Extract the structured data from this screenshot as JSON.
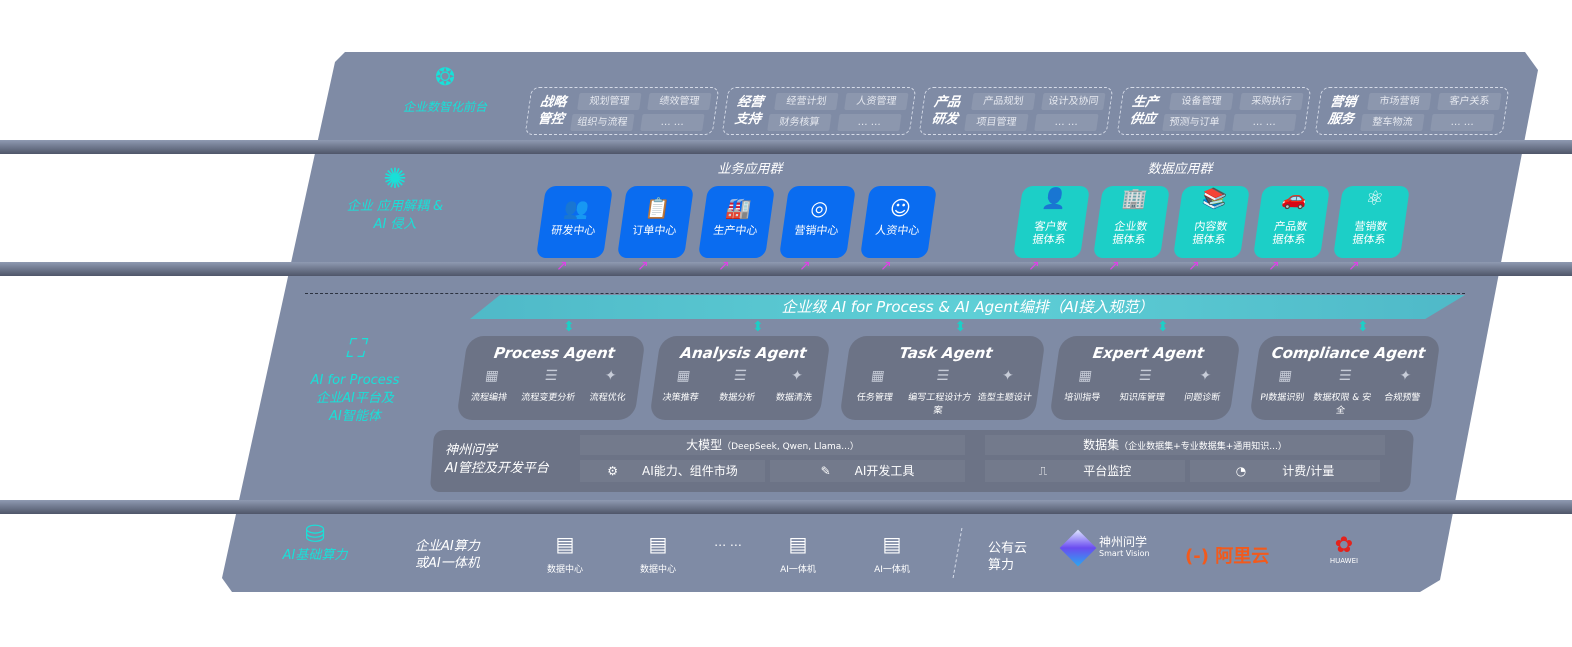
{
  "layers": {
    "frontend": {
      "label": "企业数智化前台",
      "icon": "brain-icon",
      "groups": [
        {
          "title": "战略管控",
          "items": [
            "规划管理",
            "绩效管理",
            "组织与流程",
            "… …"
          ]
        },
        {
          "title": "经营支持",
          "items": [
            "经营计划",
            "人资管理",
            "财务核算",
            "… …"
          ]
        },
        {
          "title": "产品研发",
          "items": [
            "产品规划",
            "设计及协同",
            "项目管理",
            "… …"
          ]
        },
        {
          "title": "生产供应",
          "items": [
            "设备管理",
            "采购执行",
            "预测与订单",
            "… …"
          ]
        },
        {
          "title": "营销服务",
          "items": [
            "市场营销",
            "客户关系",
            "整车物流",
            "… …"
          ]
        }
      ]
    },
    "apps": {
      "label": "企业 应用解耦 & AI 侵入",
      "icon": "molecule-icon",
      "business_title": "业务应用群",
      "data_title": "数据应用群",
      "business": [
        {
          "label": "研发中心",
          "icon": "team-icon"
        },
        {
          "label": "订单中心",
          "icon": "clipboard-icon"
        },
        {
          "label": "生产中心",
          "icon": "factory-icon"
        },
        {
          "label": "营销中心",
          "icon": "target-icon"
        },
        {
          "label": "人资中心",
          "icon": "person-icon"
        }
      ],
      "data": [
        {
          "label": "客户数据体系",
          "icon": "user-icon"
        },
        {
          "label": "企业数据体系",
          "icon": "building-icon"
        },
        {
          "label": "内容数据体系",
          "icon": "books-icon"
        },
        {
          "label": "产品数据体系",
          "icon": "car-icon"
        },
        {
          "label": "营销数据体系",
          "icon": "atom-icon"
        }
      ]
    },
    "ai": {
      "label1": "AI for Process",
      "label2": "企业AI平台及",
      "label3": "AI智能体",
      "icon": "face-scan-icon",
      "banner": "企业级 AI for Process & AI Agent编排（AI接入规范）",
      "agents": [
        {
          "title": "Process Agent",
          "items": [
            "流程编排",
            "流程变更分析",
            "流程优化"
          ]
        },
        {
          "title": "Analysis Agent",
          "items": [
            "决策推荐",
            "数据分析",
            "数据清洗"
          ]
        },
        {
          "title": "Task Agent",
          "items": [
            "任务管理",
            "编写工程设计方案",
            "造型主题设计"
          ]
        },
        {
          "title": "Expert Agent",
          "items": [
            "培训指导",
            "知识库管理",
            "问题诊断"
          ]
        },
        {
          "title": "Compliance Agent",
          "items": [
            "PI数据识别",
            "数据权限 & 安全",
            "合规预警"
          ]
        }
      ],
      "platform": {
        "name1": "神州问学",
        "name2": "AI管控及开发平台",
        "model_title": "大模型",
        "model_note": "（DeepSeek, Qwen, Llama...）",
        "dataset_title": "数据集",
        "dataset_note": "（企业数据集+专业数据集+通用知识...）",
        "cells": [
          "AI能力、组件市场",
          "AI开发工具",
          "平台监控",
          "计费/计量"
        ]
      }
    },
    "compute": {
      "label": "AI基础算力",
      "icon": "database-icon",
      "enterprise": "企业AI算力\n或AI一体机",
      "servers": [
        "数据中心",
        "数据中心",
        "… …",
        "AI一体机",
        "AI一体机"
      ],
      "public": "公有云\n算力",
      "vendors": [
        {
          "name": "神州问学",
          "sub": "Smart Vision"
        },
        {
          "name": "阿里云",
          "mark": "(-)"
        },
        {
          "name": "HUAWEI"
        }
      ],
      "colors": {
        "aliyun": "#f25a1c",
        "huawei": "#e3221c"
      }
    }
  }
}
